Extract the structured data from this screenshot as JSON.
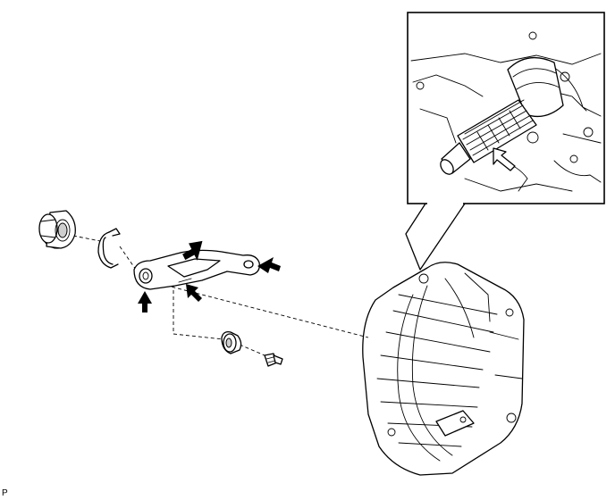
{
  "figure": {
    "code": "P"
  }
}
